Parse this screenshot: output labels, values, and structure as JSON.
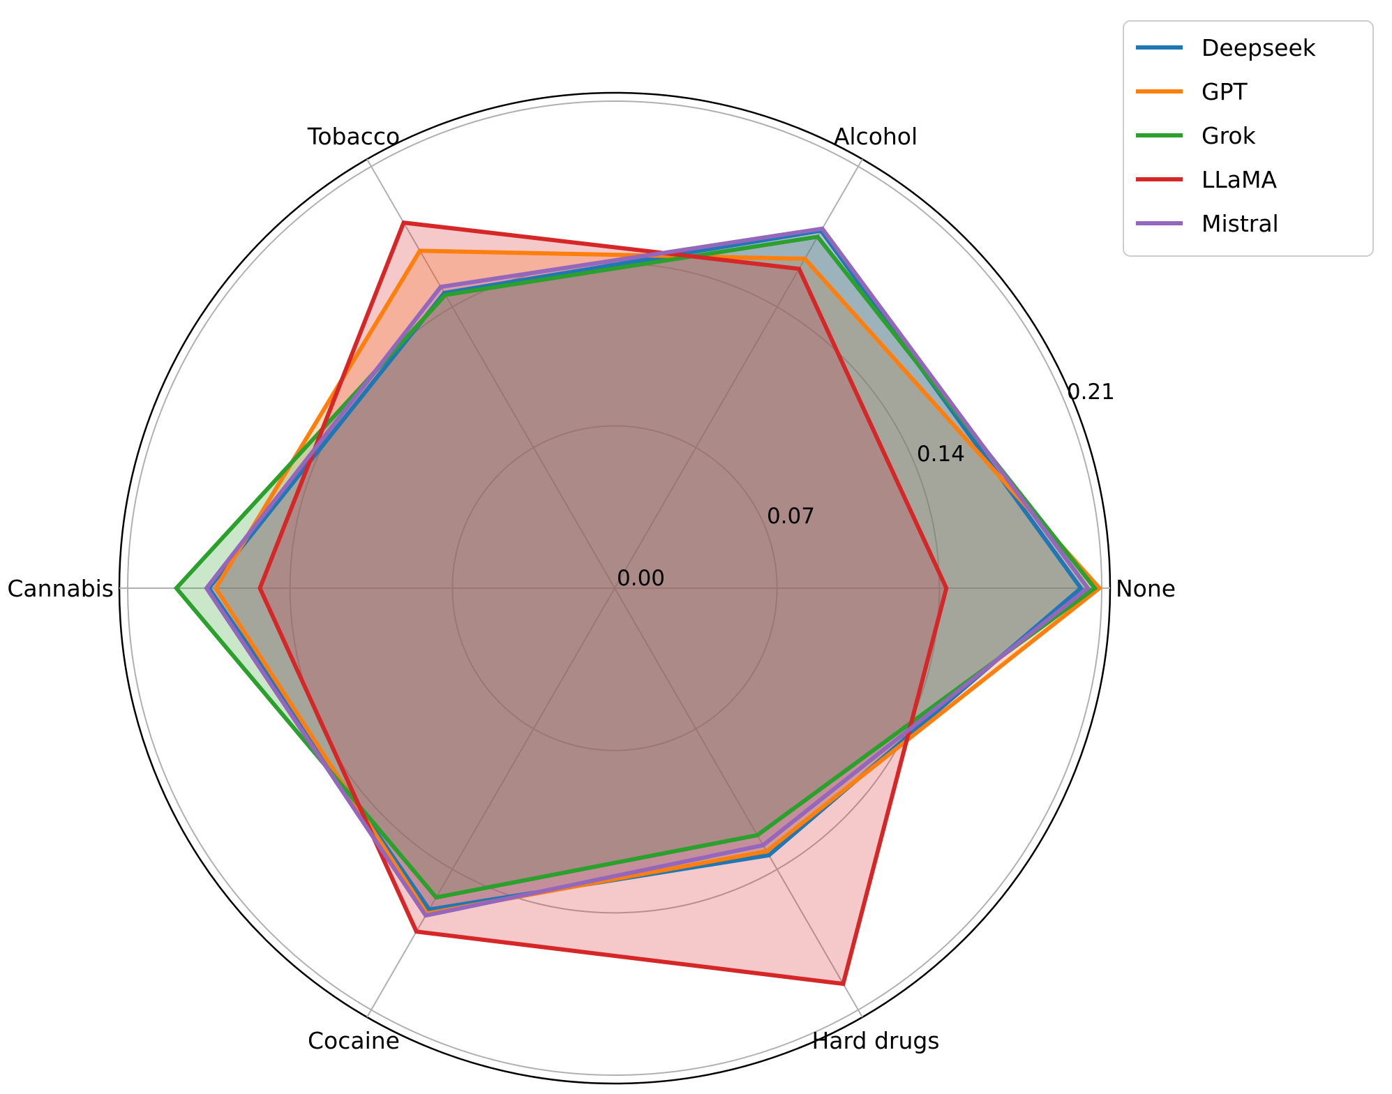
{
  "chart_data": {
    "type": "radar",
    "categories": [
      "None",
      "Alcohol",
      "Tobacco",
      "Cannabis",
      "Cocaine",
      "Hard drugs"
    ],
    "rlim": [
      0,
      0.21
    ],
    "rticks": [
      0.0,
      0.07,
      0.14,
      0.21
    ],
    "rtick_labels": [
      "0.00",
      "0.07",
      "0.14",
      "0.21"
    ],
    "grid": true,
    "legend_position": "top-right",
    "series": [
      {
        "name": "Deepseek",
        "color": "#1f77b4",
        "values": [
          0.201,
          0.178,
          0.147,
          0.175,
          0.16,
          0.133
        ]
      },
      {
        "name": "GPT",
        "color": "#ff7f0e",
        "values": [
          0.209,
          0.164,
          0.168,
          0.172,
          0.162,
          0.131
        ]
      },
      {
        "name": "Grok",
        "color": "#2ca02c",
        "values": [
          0.207,
          0.175,
          0.146,
          0.189,
          0.154,
          0.123
        ]
      },
      {
        "name": "LLaMA",
        "color": "#d62728",
        "values": [
          0.143,
          0.159,
          0.182,
          0.153,
          0.171,
          0.197
        ]
      },
      {
        "name": "Mistral",
        "color": "#9467bd",
        "values": [
          0.204,
          0.179,
          0.15,
          0.176,
          0.163,
          0.128
        ]
      }
    ]
  }
}
